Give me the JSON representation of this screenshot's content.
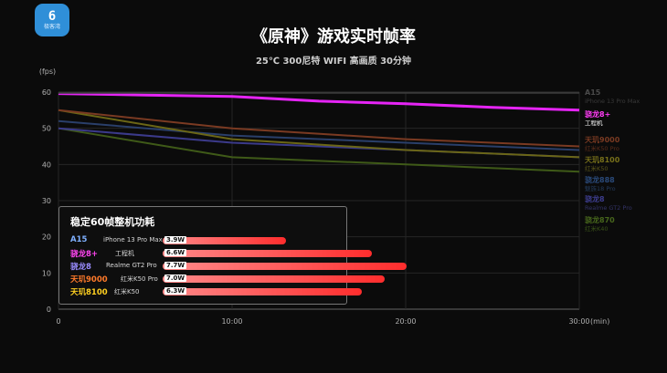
{
  "logo": {
    "mark": "6",
    "text": "极客湾"
  },
  "header": {
    "title": "《原神》游戏实时帧率",
    "subtitle": "25℃ 300尼特 WIFI 高画质 30分钟"
  },
  "chart_data": {
    "type": "line",
    "title": "《原神》游戏实时帧率",
    "subtitle": "25℃ 300尼特 WIFI 高画质 30分钟",
    "xlabel": "(min)",
    "ylabel": "(fps)",
    "xlim": [
      0,
      30
    ],
    "ylim": [
      0,
      60
    ],
    "x_ticks": [
      "0",
      "10:00",
      "20:00",
      "30:00"
    ],
    "y_ticks": [
      "0",
      "10",
      "20",
      "30",
      "40",
      "50",
      "60"
    ],
    "grid": true,
    "legend_position": "right",
    "series": [
      {
        "name": "A15",
        "device": "iPhone 13 Pro Max",
        "color": "#3a3a3a",
        "approx_fps": 60,
        "x": [
          0,
          30
        ],
        "y": [
          59.8,
          59.8
        ]
      },
      {
        "name": "骁龙8+",
        "device": "工程机",
        "color": "#e524f5",
        "approx_fps": 57,
        "x": [
          0,
          5,
          10,
          15,
          20,
          25,
          30
        ],
        "y": [
          59.6,
          59.2,
          58.8,
          57.5,
          56.8,
          55.8,
          55.0
        ]
      },
      {
        "name": "天玑9000",
        "device": "红米K50 Pro",
        "color": "#7a3a22",
        "approx_fps": 50,
        "x": [
          0,
          10,
          20,
          30
        ],
        "y": [
          55,
          50,
          47,
          45
        ]
      },
      {
        "name": "天玑8100",
        "device": "红米K50",
        "color": "#6b6616",
        "approx_fps": 48,
        "x": [
          0,
          10,
          20,
          30
        ],
        "y": [
          55,
          47,
          44,
          42
        ]
      },
      {
        "name": "骁龙888",
        "device": "魅族18 Pro",
        "color": "#2a3f6a",
        "approx_fps": 48,
        "x": [
          0,
          10,
          20,
          30
        ],
        "y": [
          52,
          48,
          46,
          44
        ]
      },
      {
        "name": "骁龙8",
        "device": "Realme GT2 Pro",
        "color": "#3b3a8a",
        "approx_fps": 46,
        "x": [
          0,
          10,
          20,
          30
        ],
        "y": [
          50,
          46,
          44,
          42
        ]
      },
      {
        "name": "骁龙870",
        "device": "红米K40",
        "color": "#3f5a18",
        "approx_fps": 42,
        "x": [
          0,
          10,
          20,
          30
        ],
        "y": [
          50,
          42,
          40,
          38
        ]
      }
    ]
  },
  "power_panel": {
    "title": "稳定60帧整机功耗",
    "rows": [
      {
        "chip": "A15",
        "device": "iPhone 13 Pro Max",
        "value": "3.9W",
        "watts": 3.9,
        "color": "#7fb0ff"
      },
      {
        "chip": "骁龙8+",
        "device": "工程机",
        "value": "6.6W",
        "watts": 6.6,
        "color": "#ff45f0"
      },
      {
        "chip": "骁龙8",
        "device": "Realme GT2 Pro",
        "value": "7.7W",
        "watts": 7.7,
        "color": "#9a8cff"
      },
      {
        "chip": "天玑9000",
        "device": "红米K50 Pro",
        "value": "7.0W",
        "watts": 7.0,
        "color": "#ff7a2a"
      },
      {
        "chip": "天玑8100",
        "device": "红米K50",
        "value": "6.3W",
        "watts": 6.3,
        "color": "#ffd020"
      }
    ]
  }
}
